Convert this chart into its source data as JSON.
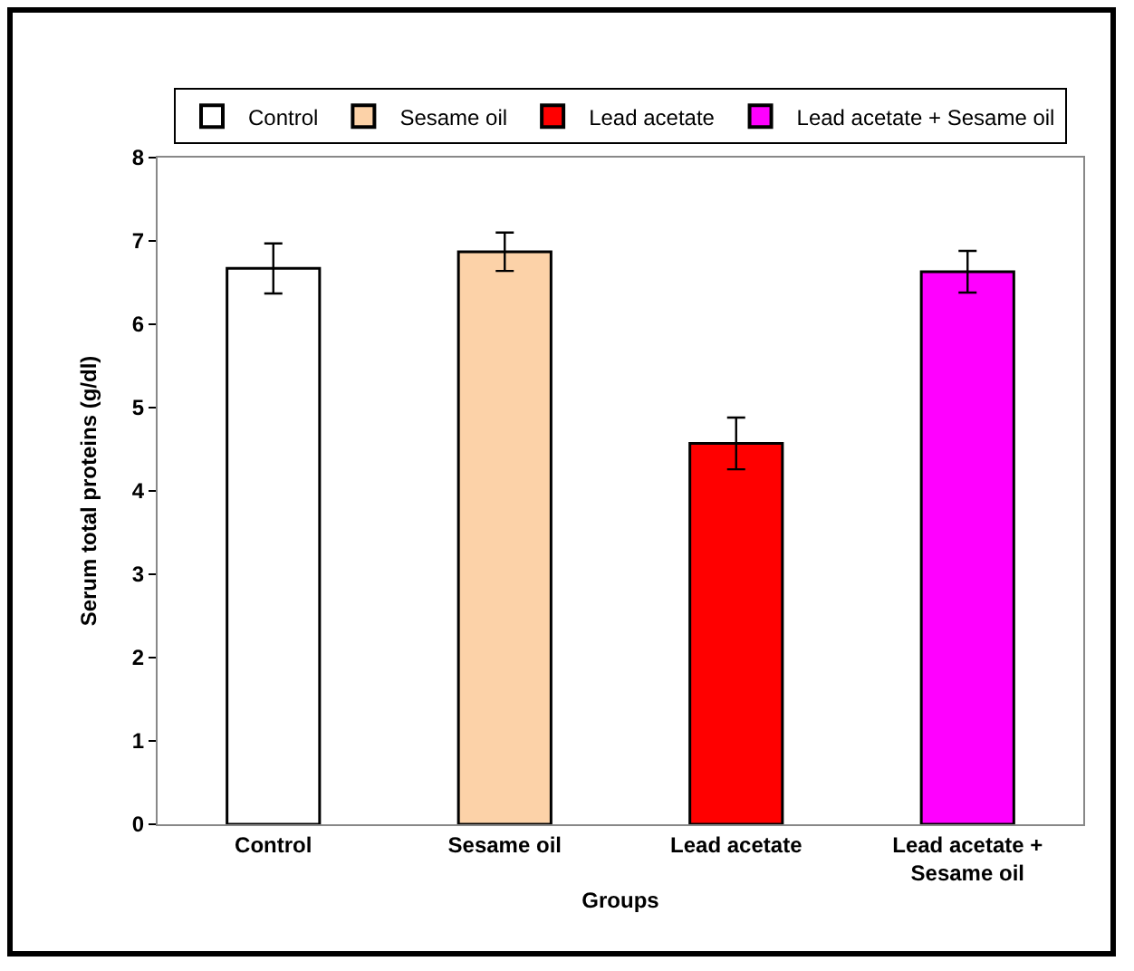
{
  "chart_data": {
    "type": "bar",
    "xlabel": "Groups",
    "ylabel": "Serum total proteins (g/dl)",
    "categories": [
      "Control",
      "Sesame oil",
      "Lead acetate",
      "Lead acetate + Sesame oil"
    ],
    "series": [
      {
        "name": "Control",
        "color": "#ffffff",
        "values": [
          6.67,
          null,
          null,
          null
        ],
        "errors": [
          0.3,
          null,
          null,
          null
        ]
      },
      {
        "name": "Sesame oil",
        "color": "#fcd2a8",
        "values": [
          null,
          6.87,
          null,
          null
        ],
        "errors": [
          null,
          0.23,
          null,
          null
        ]
      },
      {
        "name": "Lead acetate",
        "color": "#ff0000",
        "values": [
          null,
          null,
          4.57,
          null
        ],
        "errors": [
          null,
          null,
          0.31,
          null
        ]
      },
      {
        "name": "Lead acetate + Sesame oil",
        "color": "#ff00ff",
        "values": [
          null,
          null,
          null,
          6.63
        ],
        "errors": [
          null,
          null,
          null,
          0.25
        ]
      }
    ],
    "ylim": [
      0,
      8
    ],
    "yticks": [
      0,
      1,
      2,
      3,
      4,
      5,
      6,
      7,
      8
    ],
    "grid": false,
    "legend": "top"
  }
}
